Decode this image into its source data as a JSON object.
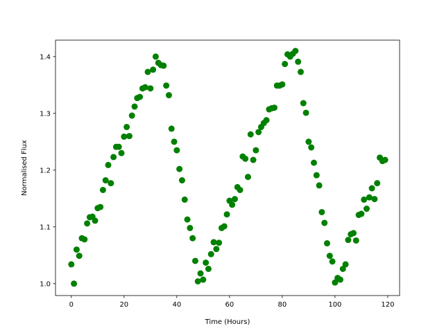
{
  "chart_data": {
    "type": "scatter",
    "title": "",
    "xlabel": "Time (Hours)",
    "ylabel": "Normalised Flux",
    "xlim": [
      -6,
      124.5
    ],
    "ylim": [
      0.979,
      1.429
    ],
    "xticks": [
      0,
      20,
      40,
      60,
      80,
      100,
      120
    ],
    "xtick_labels": [
      "0",
      "20",
      "40",
      "60",
      "80",
      "100",
      "120"
    ],
    "yticks": [
      1.0,
      1.1,
      1.2,
      1.3,
      1.4
    ],
    "ytick_labels": [
      "1.0",
      "1.1",
      "1.2",
      "1.3",
      "1.4"
    ],
    "grid": false,
    "marker_color": "#008000",
    "x": [
      0,
      1,
      2,
      3,
      4,
      5,
      6,
      7,
      8,
      9,
      10,
      11,
      12,
      13,
      14,
      15,
      16,
      17,
      18,
      19,
      20,
      21,
      22,
      23,
      24,
      25,
      26,
      27,
      28,
      29,
      30,
      31,
      32,
      33,
      34,
      35,
      36,
      37,
      38,
      39,
      40,
      41,
      42,
      43,
      44,
      45,
      46,
      47,
      48,
      49,
      50,
      51,
      52,
      53,
      54,
      55,
      56,
      57,
      58,
      59,
      60,
      61,
      62,
      63,
      64,
      65,
      66,
      67,
      68,
      69,
      70,
      71,
      72,
      73,
      74,
      75,
      76,
      77,
      78,
      79,
      80,
      81,
      82,
      83,
      84,
      85,
      86,
      87,
      88,
      89,
      90,
      91,
      92,
      93,
      94,
      95,
      96,
      97,
      98,
      99,
      100,
      101,
      102,
      103,
      104,
      105,
      106,
      107,
      108,
      109,
      110,
      111,
      112,
      113,
      114,
      115,
      116,
      117,
      118,
      119
    ],
    "y": [
      1.034,
      1.0,
      1.06,
      1.049,
      1.08,
      1.078,
      1.106,
      1.117,
      1.118,
      1.111,
      1.133,
      1.135,
      1.165,
      1.182,
      1.209,
      1.177,
      1.223,
      1.241,
      1.241,
      1.23,
      1.259,
      1.276,
      1.26,
      1.296,
      1.312,
      1.327,
      1.329,
      1.344,
      1.346,
      1.373,
      1.344,
      1.377,
      1.4,
      1.389,
      1.385,
      1.384,
      1.349,
      1.332,
      1.273,
      1.25,
      1.235,
      1.202,
      1.182,
      1.148,
      1.113,
      1.098,
      1.08,
      1.04,
      1.004,
      1.018,
      1.007,
      1.037,
      1.026,
      1.052,
      1.073,
      1.061,
      1.072,
      1.098,
      1.101,
      1.122,
      1.146,
      1.139,
      1.149,
      1.17,
      1.165,
      1.224,
      1.22,
      1.188,
      1.263,
      1.218,
      1.235,
      1.267,
      1.276,
      1.283,
      1.288,
      1.307,
      1.309,
      1.31,
      1.349,
      1.349,
      1.351,
      1.387,
      1.404,
      1.4,
      1.405,
      1.41,
      1.391,
      1.373,
      1.318,
      1.301,
      1.25,
      1.24,
      1.213,
      1.191,
      1.173,
      1.126,
      1.107,
      1.071,
      1.049,
      1.039,
      1.002,
      1.01,
      1.007,
      1.026,
      1.034,
      1.077,
      1.087,
      1.089,
      1.076,
      1.121,
      1.123,
      1.148,
      1.132,
      1.152,
      1.168,
      1.149,
      1.177,
      1.222,
      1.216,
      1.218
    ]
  }
}
